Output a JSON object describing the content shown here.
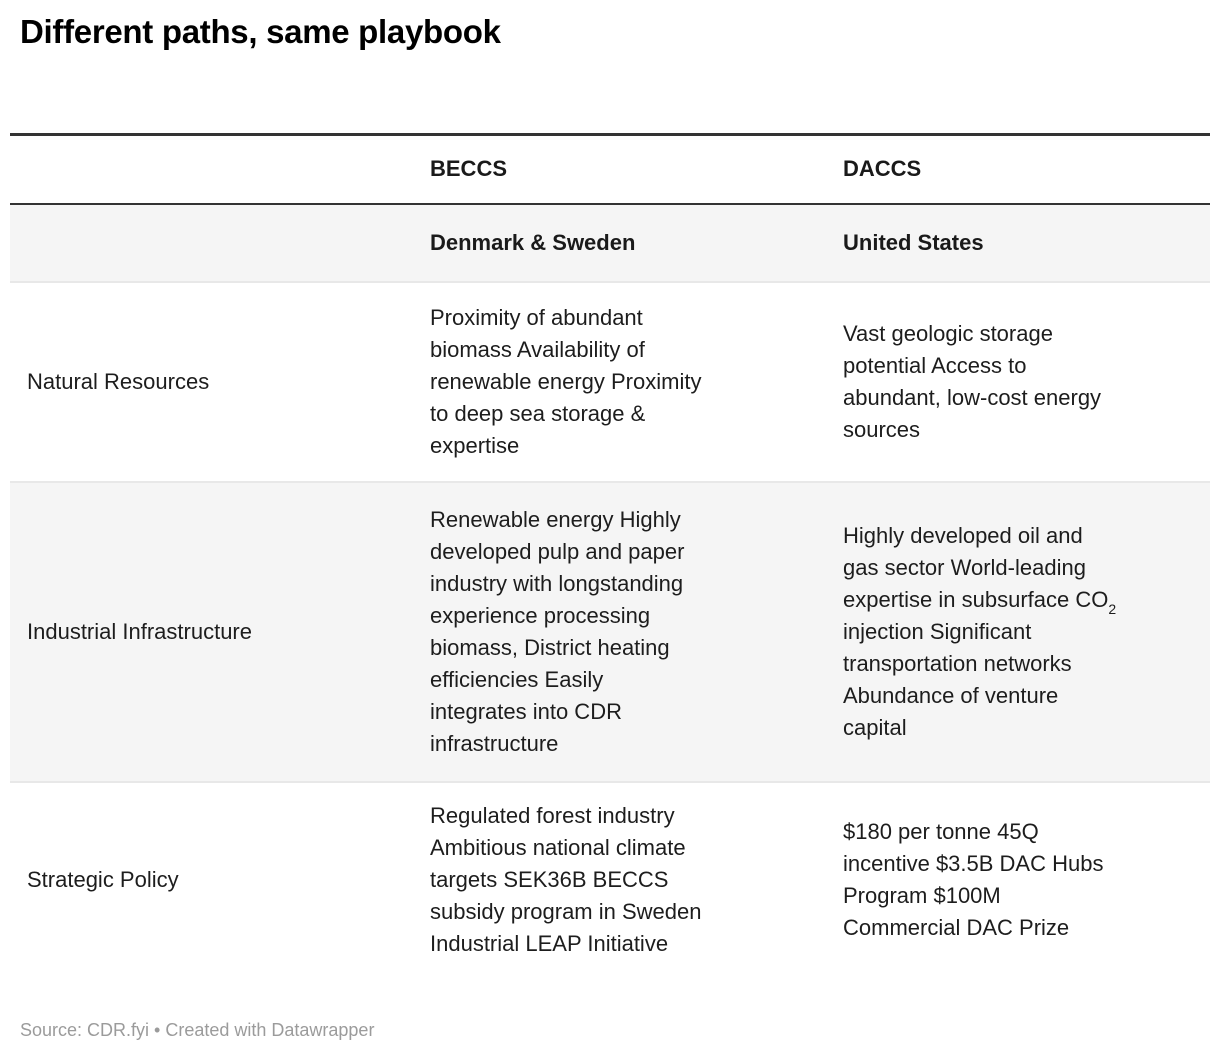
{
  "chart_data": {
    "type": "table",
    "title": "Different paths, same playbook",
    "columns": [
      "",
      "BECCS",
      "DACCS"
    ],
    "subheader": [
      "",
      "Denmark & Sweden",
      "United States"
    ],
    "rows": [
      {
        "label": "Natural Resources",
        "beccs": "Proximity of abundant\nbiomass Availability of\nrenewable energy Proximity\nto deep sea storage &\nexpertise",
        "daccs": "Vast geologic storage\npotential Access to\nabundant, low-cost energy\nsources"
      },
      {
        "label": "Industrial Infrastructure",
        "beccs": "Renewable energy Highly\ndeveloped pulp and paper\nindustry with longstanding\nexperience processing\nbiomass, District heating\nefficiencies Easily\nintegrates into CDR\ninfrastructure",
        "daccs_co2_before": "Highly developed oil and\ngas sector World-leading\nexpertise in subsurface CO",
        "daccs_co2_sub": "2",
        "daccs_co2_after": "\ninjection Significant\ntransportation networks\nAbundance of venture\ncapital"
      },
      {
        "label": "Strategic Policy",
        "beccs": "Regulated forest industry\nAmbitious national climate\ntargets SEK36B BECCS\nsubsidy program in Sweden\nIndustrial LEAP Initiative",
        "daccs": "$180 per tonne 45Q\nincentive $3.5B DAC Hubs\nProgram $100M\nCommercial DAC Prize"
      }
    ],
    "source": "Source: CDR.fyi • Created with Datawrapper",
    "layout": {
      "legend_position": "none",
      "grid": "off"
    },
    "colors": {
      "top_border": "#333333",
      "header_divider": "#333333",
      "row_divider": "#e8e8e8",
      "stripe_background": "#f5f5f5",
      "body_text": "#1d1d1d",
      "muted_text": "#9b9b9b"
    }
  }
}
